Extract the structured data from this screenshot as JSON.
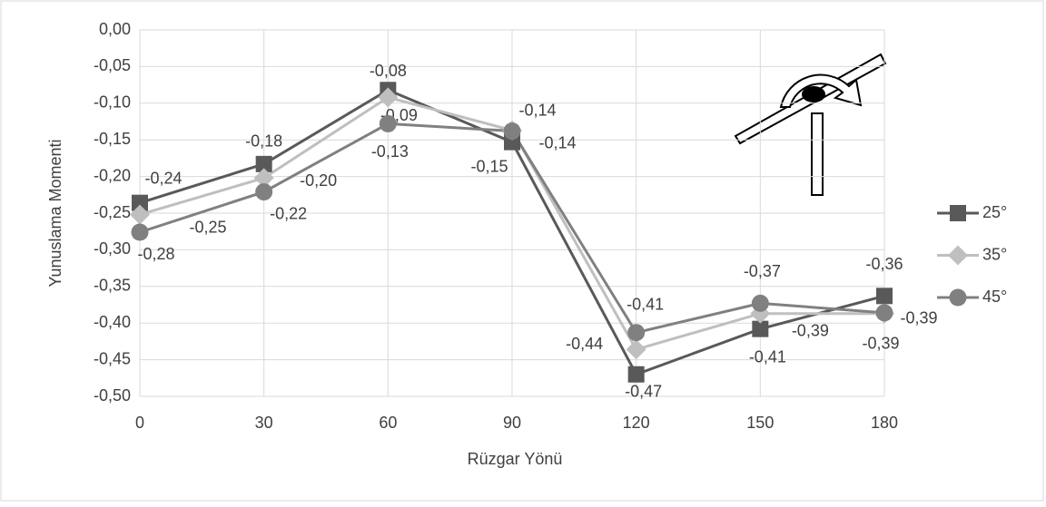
{
  "chart_data": {
    "type": "line",
    "x": [
      0,
      30,
      60,
      90,
      120,
      150,
      180
    ],
    "xlim": [
      0,
      180
    ],
    "xticks": [
      0,
      30,
      60,
      90,
      120,
      150,
      180
    ],
    "ylim": [
      -0.5,
      0
    ],
    "yticks": [
      {
        "value": -0.5,
        "label": "-0,50"
      },
      {
        "value": -0.45,
        "label": "-0,45"
      },
      {
        "value": -0.4,
        "label": "-0,40"
      },
      {
        "value": -0.35,
        "label": "-0,35"
      },
      {
        "value": -0.3,
        "label": "-0,30"
      },
      {
        "value": -0.25,
        "label": "-0,25"
      },
      {
        "value": -0.2,
        "label": "-0,20"
      },
      {
        "value": -0.15,
        "label": "-0,15"
      },
      {
        "value": -0.1,
        "label": "-0,10"
      },
      {
        "value": -0.05,
        "label": "-0,05"
      },
      {
        "value": 0,
        "label": "0,00"
      }
    ],
    "xlabel": "Rüzgar Yönü",
    "ylabel": "Yunuslama Momenti",
    "grid": true,
    "legend": "right",
    "series": [
      {
        "name": "25°",
        "color": "#595959",
        "marker": "square",
        "values": [
          -0.236,
          -0.183,
          -0.082,
          -0.153,
          -0.47,
          -0.408,
          -0.363
        ],
        "value_labels": [
          "-0,24",
          "-0,18",
          "-0,08",
          "-0,15",
          "-0,47",
          "-0,41",
          "-0,36"
        ]
      },
      {
        "name": "35°",
        "color": "#bfbfbf",
        "marker": "diamond",
        "values": [
          -0.252,
          -0.202,
          -0.092,
          -0.137,
          -0.436,
          -0.387,
          -0.387
        ],
        "value_labels": [
          "-0,25",
          "-0,20",
          "-0,09",
          "-0,14",
          "-0,44",
          "-0,39",
          "-0,39"
        ]
      },
      {
        "name": "45°",
        "color": "#808080",
        "marker": "circle",
        "values": [
          -0.276,
          -0.221,
          -0.128,
          -0.138,
          -0.413,
          -0.373,
          -0.386
        ],
        "value_labels": [
          "-0,28",
          "-0,22",
          "-0,13",
          "-0,14",
          "-0,41",
          "-0,37",
          "-0,39"
        ]
      }
    ]
  }
}
